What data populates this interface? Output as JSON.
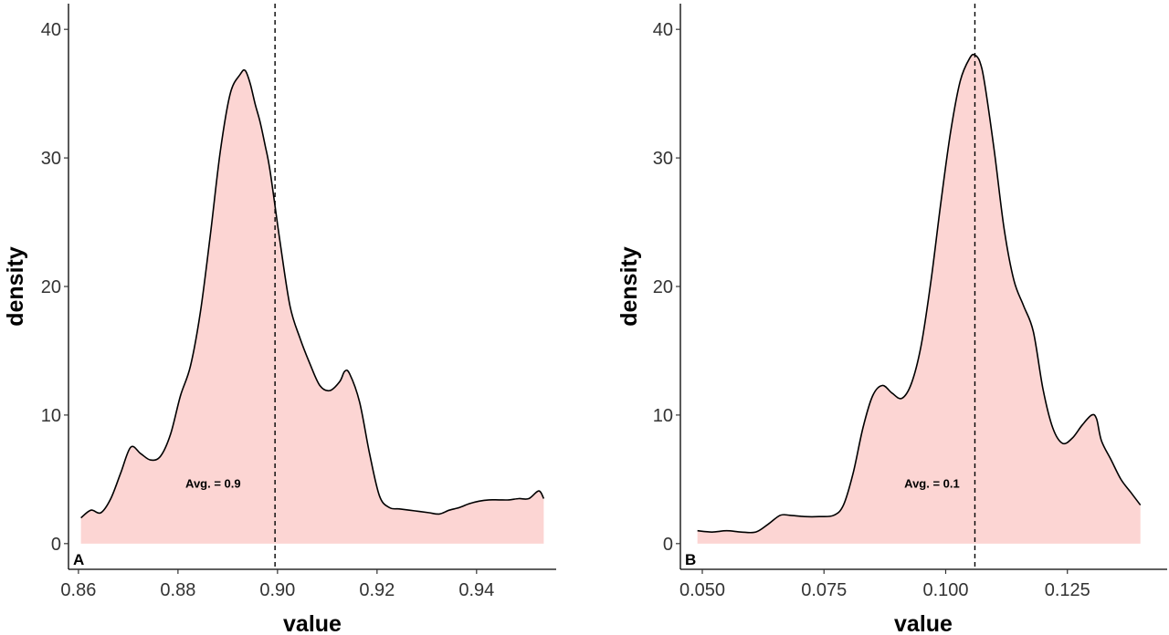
{
  "chart_data": [
    {
      "type": "area",
      "panel_label": "A",
      "xlabel": "value",
      "ylabel": "density",
      "xlim": [
        0.858,
        0.956
      ],
      "ylim": [
        -2,
        42
      ],
      "x_ticks": [
        0.86,
        0.88,
        0.9,
        0.92,
        0.94
      ],
      "x_tick_labels": [
        "0.86",
        "0.88",
        "0.90",
        "0.92",
        "0.94"
      ],
      "y_ticks": [
        0,
        10,
        20,
        30,
        40
      ],
      "y_tick_labels": [
        "0",
        "10",
        "20",
        "30",
        "40"
      ],
      "mean_line": 0.8995,
      "annotation": {
        "text": "Avg. = 0.9",
        "x": 0.8815,
        "y": 4.7
      },
      "grid": false,
      "fill_color": "#fcd5d3",
      "line_color": "#000000",
      "x": [
        0.8605,
        0.8625,
        0.8645,
        0.8665,
        0.8685,
        0.8705,
        0.8725,
        0.8745,
        0.8765,
        0.8785,
        0.8805,
        0.8825,
        0.8845,
        0.8865,
        0.8885,
        0.8905,
        0.8925,
        0.8935,
        0.8945,
        0.8955,
        0.8965,
        0.8975,
        0.8985,
        0.9005,
        0.9025,
        0.9045,
        0.9065,
        0.9085,
        0.9105,
        0.9125,
        0.9135,
        0.9145,
        0.9165,
        0.9185,
        0.9205,
        0.9225,
        0.9245,
        0.9265,
        0.9285,
        0.9305,
        0.9325,
        0.9345,
        0.9365,
        0.9385,
        0.9405,
        0.9425,
        0.9445,
        0.9465,
        0.9485,
        0.9505,
        0.9525,
        0.9535
      ],
      "y": [
        2.0,
        2.6,
        2.4,
        3.5,
        5.5,
        7.5,
        7.0,
        6.5,
        6.8,
        8.5,
        11.5,
        13.8,
        18.0,
        24.0,
        30.5,
        35.0,
        36.5,
        36.8,
        35.8,
        34.2,
        32.8,
        31.0,
        29.0,
        23.5,
        18.5,
        16.0,
        14.0,
        12.3,
        11.9,
        12.6,
        13.4,
        13.2,
        11.0,
        7.0,
        3.7,
        2.8,
        2.7,
        2.6,
        2.5,
        2.4,
        2.3,
        2.6,
        2.8,
        3.1,
        3.3,
        3.4,
        3.4,
        3.4,
        3.5,
        3.5,
        4.1,
        3.5
      ]
    },
    {
      "type": "area",
      "panel_label": "B",
      "xlabel": "value",
      "ylabel": "density",
      "xlim": [
        0.0455,
        0.1455
      ],
      "ylim": [
        -2,
        42
      ],
      "x_ticks": [
        0.05,
        0.075,
        0.1,
        0.125
      ],
      "x_tick_labels": [
        "0.050",
        "0.075",
        "0.100",
        "0.125"
      ],
      "y_ticks": [
        0,
        10,
        20,
        30,
        40
      ],
      "y_tick_labels": [
        "0",
        "10",
        "20",
        "30",
        "40"
      ],
      "mean_line": 0.106,
      "annotation": {
        "text": "Avg. = 0.1",
        "x": 0.0915,
        "y": 4.7
      },
      "grid": false,
      "fill_color": "#fcd5d3",
      "line_color": "#000000",
      "x": [
        0.049,
        0.052,
        0.055,
        0.058,
        0.061,
        0.0635,
        0.066,
        0.068,
        0.071,
        0.074,
        0.077,
        0.079,
        0.081,
        0.083,
        0.085,
        0.087,
        0.089,
        0.091,
        0.093,
        0.095,
        0.097,
        0.099,
        0.101,
        0.103,
        0.105,
        0.106,
        0.107,
        0.108,
        0.11,
        0.112,
        0.114,
        0.116,
        0.118,
        0.12,
        0.122,
        0.124,
        0.126,
        0.128,
        0.13,
        0.131,
        0.132,
        0.134,
        0.136,
        0.138,
        0.14
      ],
      "y": [
        1.0,
        0.9,
        1.0,
        0.9,
        0.9,
        1.5,
        2.2,
        2.2,
        2.1,
        2.1,
        2.2,
        3.0,
        5.5,
        9.0,
        11.5,
        12.3,
        11.7,
        11.3,
        12.5,
        15.5,
        20.5,
        26.5,
        32.0,
        36.0,
        37.8,
        38.0,
        37.5,
        35.8,
        30.5,
        24.5,
        20.5,
        18.5,
        16.5,
        12.0,
        9.0,
        7.8,
        8.2,
        9.2,
        10.0,
        9.7,
        8.0,
        6.5,
        5.0,
        4.0,
        3.0
      ]
    }
  ]
}
